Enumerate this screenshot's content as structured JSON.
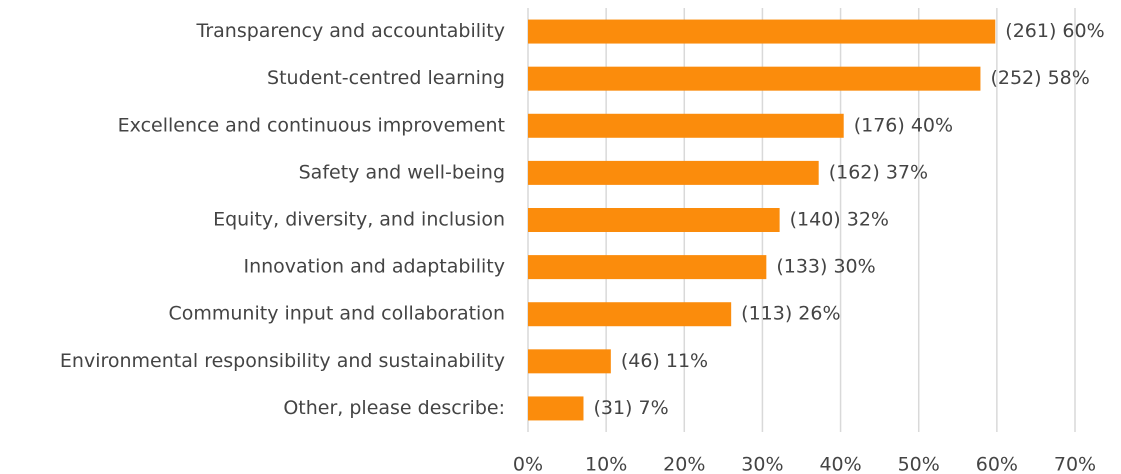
{
  "chart_data": {
    "type": "barh",
    "categories": [
      "Transparency and accountability",
      "Student-centred learning",
      "Excellence and continuous improvement",
      "Safety and well-being",
      "Equity, diversity, and inclusion",
      "Innovation and adaptability",
      "Community input and collaboration",
      "Environmental responsibility and sustainability",
      "Other, please describe:"
    ],
    "values": [
      59.8,
      57.9,
      40.4,
      37.2,
      32.2,
      30.5,
      26,
      10.6,
      7.1
    ],
    "value_labels": [
      "(261) 60%",
      "(252) 58%",
      "(176) 40%",
      "(162) 37%",
      "(140) 32%",
      "(133) 30%",
      "(113) 26%",
      "(46) 11%",
      "(31) 7%"
    ],
    "color": "#fb8c0c",
    "xlim": [
      0,
      70
    ],
    "xticks": [
      {
        "value": 0,
        "label": "0%"
      },
      {
        "value": 10,
        "label": "10%"
      },
      {
        "value": 20,
        "label": "20%"
      },
      {
        "value": 30,
        "label": "30%"
      },
      {
        "value": 40,
        "label": "40%"
      },
      {
        "value": 50,
        "label": "50%"
      },
      {
        "value": 60,
        "label": "60%"
      },
      {
        "value": 70,
        "label": "70%"
      }
    ],
    "grid": true
  }
}
